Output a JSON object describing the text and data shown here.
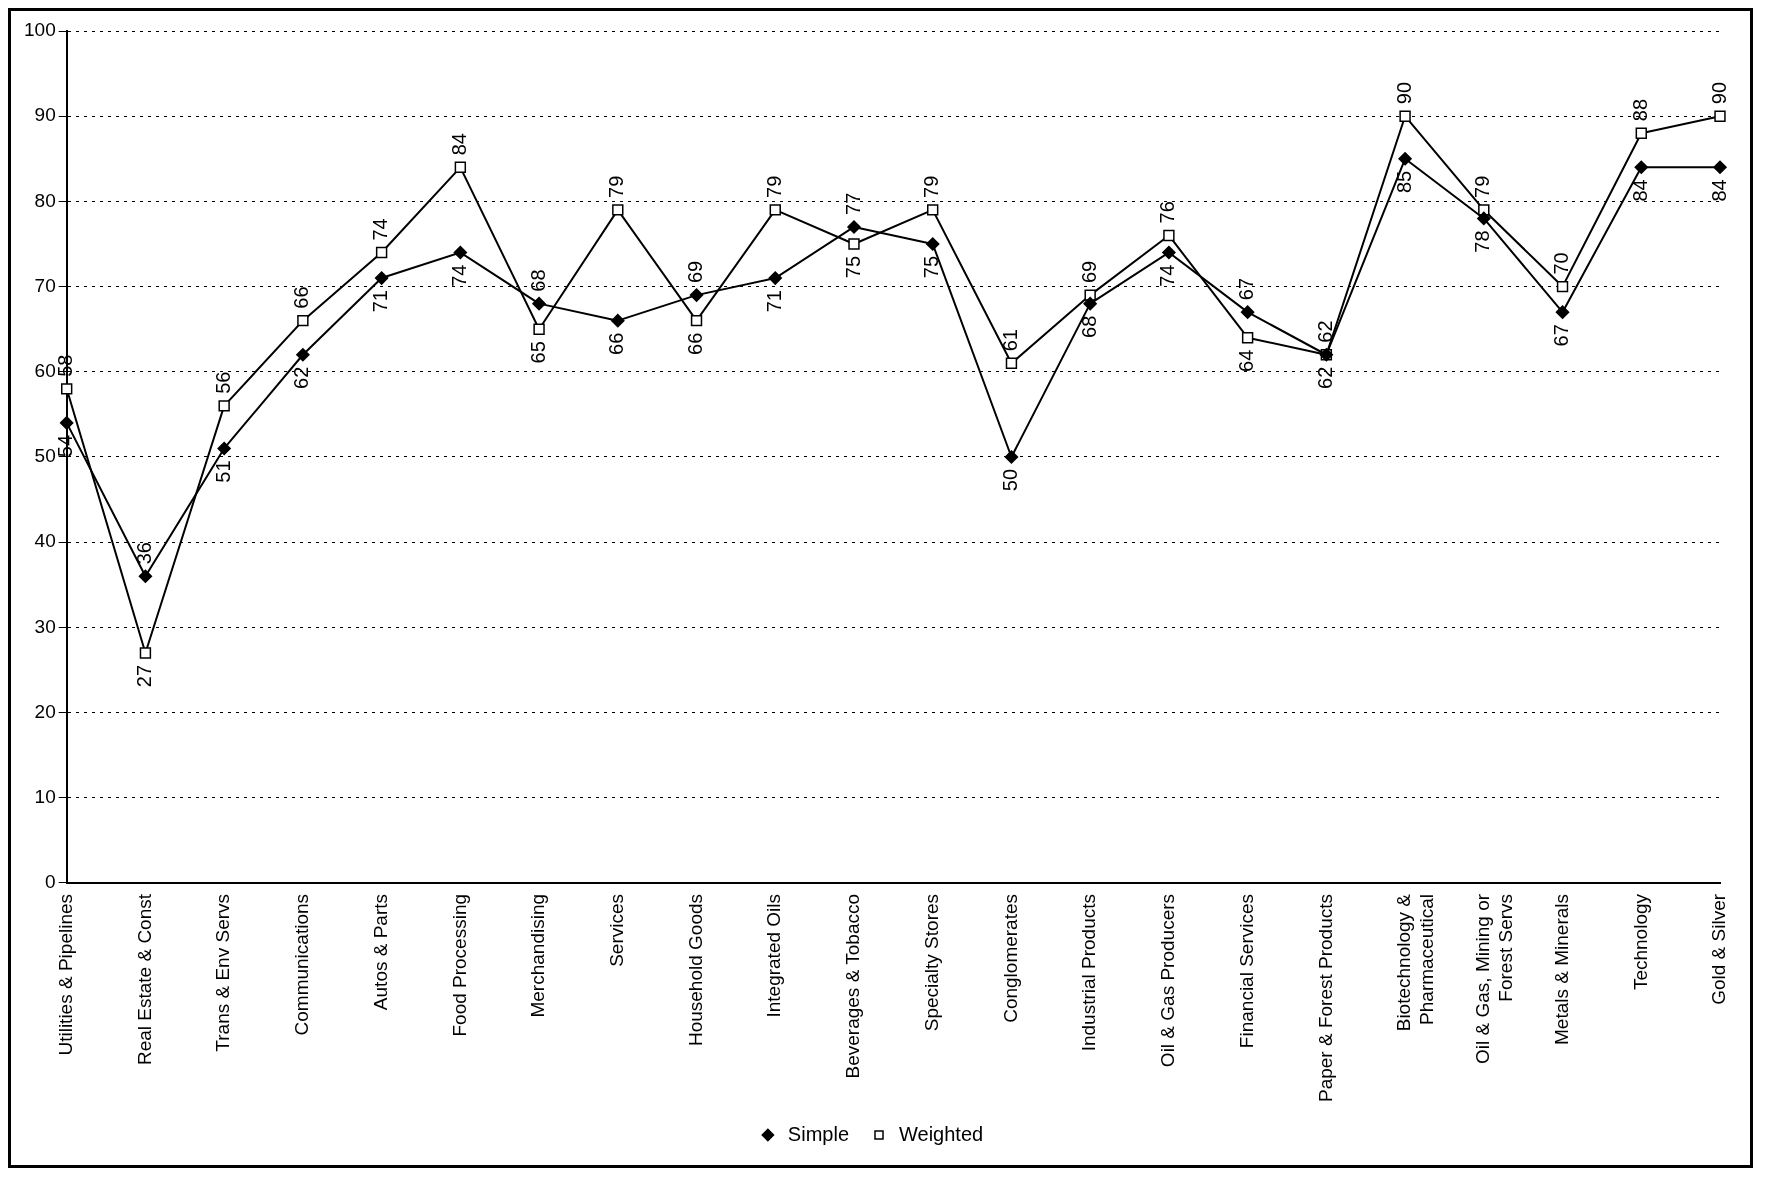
{
  "chart_data": {
    "type": "line",
    "categories": [
      "Utilities & Pipelines",
      "Real Estate & Const",
      "Trans & Env Servs",
      "Communications",
      "Autos & Parts",
      "Food Processing",
      "Merchandising",
      "Services",
      "Household Goods",
      "Integrated Oils",
      "Beverages & Tobacco",
      "Specialty Stores",
      "Conglomerates",
      "Industrial Products",
      "Oil & Gas Producers",
      "Financial Services",
      "Paper & Forest Products",
      "Biotechnology & Pharmaceutical",
      "Oil & Gas, Mining or Forest Servs",
      "Metals & Minerals",
      "Technology",
      "Gold & Silver"
    ],
    "series": [
      {
        "name": "Simple",
        "color": "#000000",
        "marker": "diamond",
        "values": [
          54,
          36,
          51,
          62,
          71,
          74,
          68,
          66,
          69,
          71,
          77,
          75,
          50,
          68,
          74,
          67,
          62,
          85,
          78,
          67,
          84,
          84
        ]
      },
      {
        "name": "Weighted",
        "color": "#000000",
        "marker": "square",
        "values": [
          58,
          27,
          56,
          66,
          74,
          84,
          65,
          79,
          66,
          79,
          75,
          79,
          61,
          69,
          76,
          64,
          62,
          90,
          79,
          70,
          88,
          90
        ]
      }
    ],
    "ylim": [
      0,
      100
    ],
    "yticks": [
      0,
      10,
      20,
      30,
      40,
      50,
      60,
      70,
      80,
      90,
      100
    ],
    "grid": "y",
    "legend": "bottom",
    "data_labels": true,
    "line_style": "solid"
  }
}
